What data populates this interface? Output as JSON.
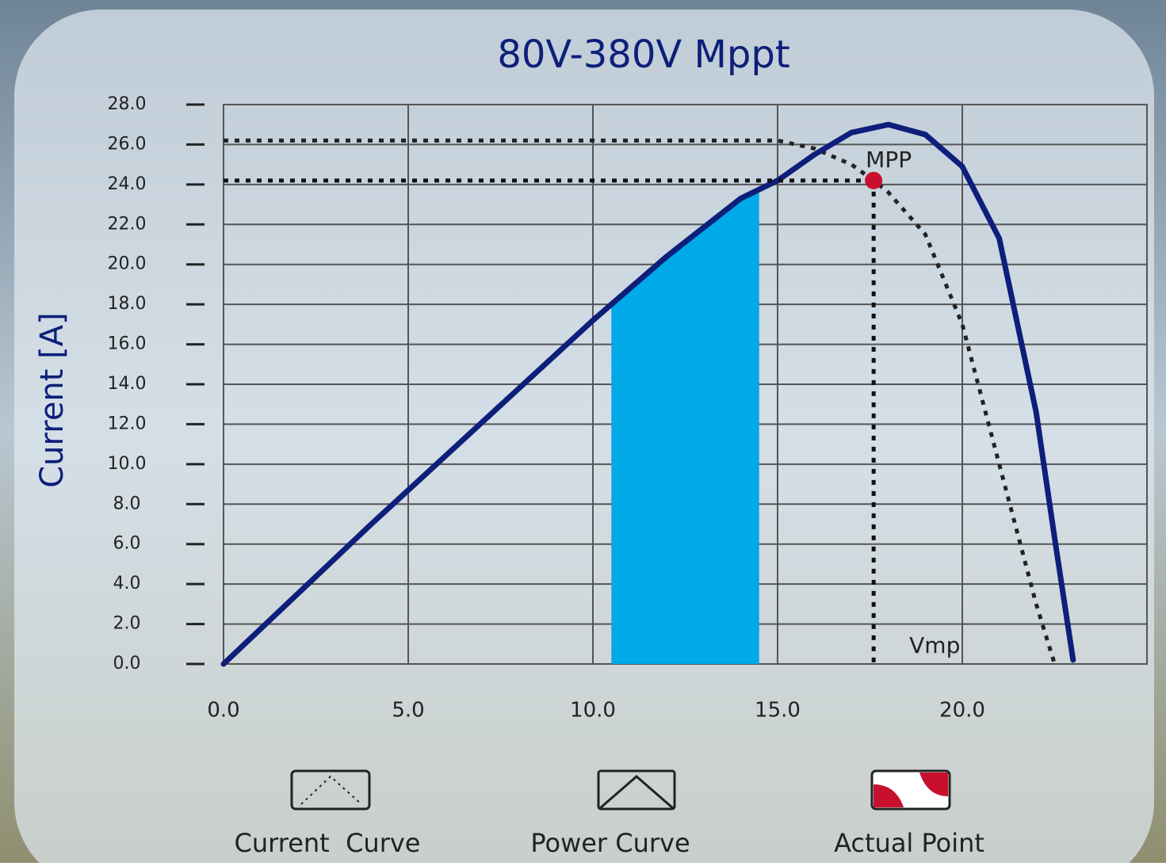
{
  "chart_data": {
    "type": "line",
    "title": "80V-380V Mppt",
    "y_label": "Current [A]",
    "annotations": [
      "MPP",
      "Vmp"
    ],
    "xlim": [
      0,
      25
    ],
    "xticks": [
      {
        "value": 0,
        "label": "0.0"
      },
      {
        "value": 5,
        "label": "5.0"
      },
      {
        "value": 10,
        "label": "10.0"
      },
      {
        "value": 15,
        "label": "15.0"
      },
      {
        "value": 20,
        "label": "20.0"
      }
    ],
    "ylim": [
      0,
      28
    ],
    "yticks": [
      {
        "value": 0,
        "label": "0.0"
      },
      {
        "value": 2,
        "label": "2.0"
      },
      {
        "value": 4,
        "label": "4.0"
      },
      {
        "value": 6,
        "label": "6.0"
      },
      {
        "value": 8,
        "label": "8.0"
      },
      {
        "value": 10,
        "label": "10.0"
      },
      {
        "value": 12,
        "label": "12.0"
      },
      {
        "value": 14,
        "label": "14.0"
      },
      {
        "value": 16,
        "label": "16.0"
      },
      {
        "value": 18,
        "label": "18.0"
      },
      {
        "value": 20,
        "label": "20.0"
      },
      {
        "value": 22,
        "label": "22.0"
      },
      {
        "value": 24,
        "label": "24.0"
      },
      {
        "value": 26,
        "label": "26.0"
      },
      {
        "value": 28,
        "label": "28.0"
      }
    ],
    "grid": true,
    "highlight_range": [
      10.5,
      14.5
    ],
    "highlight_color": "#00a9e8",
    "series": [
      {
        "name": "Current  Curve",
        "color": "#222222",
        "style": "dotted",
        "x": [
          0,
          15,
          16,
          17,
          17.6,
          18,
          19,
          20,
          21,
          22,
          22.5
        ],
        "values": [
          26.2,
          26.2,
          25.8,
          25.0,
          24.2,
          23.6,
          21.5,
          17,
          10,
          3,
          0
        ]
      },
      {
        "name": "Power Curve",
        "color": "#0d1f7a",
        "style": "solid",
        "x": [
          0,
          2,
          4,
          6,
          8,
          10,
          12,
          14,
          15,
          16,
          17,
          18,
          19,
          20,
          21,
          22,
          22.5,
          23
        ],
        "values": [
          0,
          3.5,
          7,
          10.4,
          13.8,
          17.2,
          20.4,
          23.3,
          24.2,
          25.5,
          26.6,
          27.0,
          26.5,
          24.9,
          21.3,
          12.6,
          6.3,
          0.2
        ]
      },
      {
        "name": "Actual Point",
        "color": "#c8102e",
        "style": "point",
        "x": [
          17.6
        ],
        "values": [
          24.2
        ]
      }
    ]
  }
}
